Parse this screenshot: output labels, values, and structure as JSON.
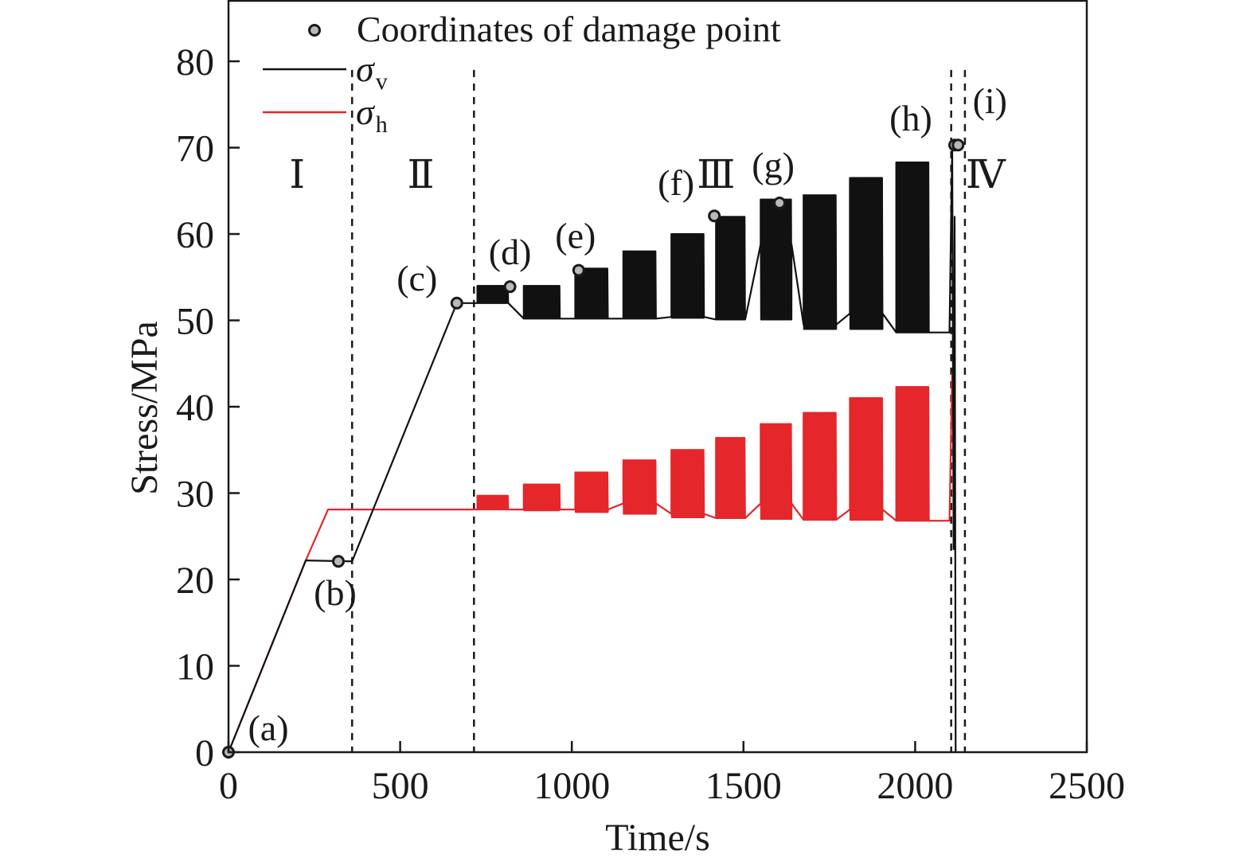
{
  "chart_data": {
    "type": "line",
    "xlabel": "Time/s",
    "ylabel": "Stress/MPa",
    "xlim": [
      0,
      2500
    ],
    "ylim": [
      0,
      80
    ],
    "x_ticks": [
      "0",
      "500",
      "1000",
      "1500",
      "2000",
      "2500"
    ],
    "y_ticks": [
      "0",
      "10",
      "20",
      "30",
      "40",
      "50",
      "60",
      "70",
      "80"
    ],
    "legend": {
      "position": "top-left",
      "marker_label": "Coordinates of damage point",
      "sv_symbol": "σ",
      "sv_sub": "v",
      "sh_symbol": "σ",
      "sh_sub": "h"
    },
    "phase_boundaries": [
      360,
      715,
      2105,
      2145
    ],
    "phase_labels": [
      {
        "label": "Ⅰ",
        "x": 200,
        "y": 67
      },
      {
        "label": "Ⅱ",
        "x": 560,
        "y": 67
      },
      {
        "label": "Ⅲ",
        "x": 1420,
        "y": 67
      },
      {
        "label": "Ⅳ",
        "x": 2205,
        "y": 67
      }
    ],
    "damage_points": [
      {
        "label": "(a)",
        "x": 0,
        "y": 0
      },
      {
        "label": "(b)",
        "x": 320,
        "y": 22.1
      },
      {
        "label": "(c)",
        "x": 665,
        "y": 52
      },
      {
        "label": "(d)",
        "x": 820,
        "y": 53.9
      },
      {
        "label": "(e)",
        "x": 1020,
        "y": 55.8
      },
      {
        "label": "(f)",
        "x": 1415,
        "y": 62.1
      },
      {
        "label": "(g)",
        "x": 1605,
        "y": 63.6
      },
      {
        "label": "(h)",
        "x": 2115,
        "y": 70.3
      },
      {
        "label": "(i)",
        "x": 2125,
        "y": 70.3
      }
    ],
    "sigma_v": {
      "color": "#111111",
      "ramp": [
        [
          0,
          0
        ],
        [
          225,
          22.2
        ],
        [
          360,
          22.1
        ],
        [
          665,
          52
        ],
        [
          715,
          52
        ]
      ],
      "stages": [
        {
          "start": 725,
          "end": 815,
          "low": 52,
          "high": 54,
          "base": 52
        },
        {
          "start": 860,
          "end": 965,
          "low": 50.2,
          "high": 54,
          "base": 50.2
        },
        {
          "start": 1010,
          "end": 1105,
          "low": 50.2,
          "high": 56,
          "base": 50.2
        },
        {
          "start": 1150,
          "end": 1245,
          "low": 50.2,
          "high": 58,
          "base": 50.2
        },
        {
          "start": 1290,
          "end": 1385,
          "low": 50.3,
          "high": 60,
          "base": 50.4
        },
        {
          "start": 1420,
          "end": 1505,
          "low": 50.1,
          "high": 62,
          "base": 50.1
        },
        {
          "start": 1550,
          "end": 1640,
          "low": 50.1,
          "high": 64,
          "base": 58.8
        },
        {
          "start": 1675,
          "end": 1770,
          "low": 49,
          "high": 64.5,
          "base": 49.5
        },
        {
          "start": 1810,
          "end": 1905,
          "low": 49,
          "high": 66.5,
          "base": 50.8
        },
        {
          "start": 1945,
          "end": 2040,
          "low": 48.6,
          "high": 68.3,
          "base": 48.6
        }
      ],
      "failure": [
        [
          2100,
          48.6
        ],
        [
          2108,
          70.3
        ],
        [
          2112,
          23.5
        ],
        [
          2115,
          62
        ],
        [
          2118,
          0
        ]
      ]
    },
    "sigma_h": {
      "color": "#e5262b",
      "ramp": [
        [
          0,
          0
        ],
        [
          225,
          22.2
        ],
        [
          290,
          28.1
        ],
        [
          715,
          28.1
        ]
      ],
      "stages": [
        {
          "start": 725,
          "end": 815,
          "low": 28.1,
          "high": 29.7,
          "base": 28.1
        },
        {
          "start": 860,
          "end": 965,
          "low": 28,
          "high": 31,
          "base": 28.1
        },
        {
          "start": 1010,
          "end": 1105,
          "low": 27.8,
          "high": 32.4,
          "base": 28.1
        },
        {
          "start": 1150,
          "end": 1245,
          "low": 27.6,
          "high": 33.8,
          "base": 28.8
        },
        {
          "start": 1290,
          "end": 1385,
          "low": 27.2,
          "high": 35,
          "base": 27.6
        },
        {
          "start": 1420,
          "end": 1505,
          "low": 27.1,
          "high": 36.4,
          "base": 27.1
        },
        {
          "start": 1550,
          "end": 1640,
          "low": 27,
          "high": 38,
          "base": 28.8
        },
        {
          "start": 1675,
          "end": 1770,
          "low": 26.9,
          "high": 39.3,
          "base": 26.9
        },
        {
          "start": 1810,
          "end": 1905,
          "low": 26.9,
          "high": 41,
          "base": 28.1
        },
        {
          "start": 1945,
          "end": 2040,
          "low": 26.8,
          "high": 42.3,
          "base": 26.8
        }
      ],
      "failure": [
        [
          2100,
          26.8
        ],
        [
          2108,
          44
        ]
      ]
    }
  }
}
